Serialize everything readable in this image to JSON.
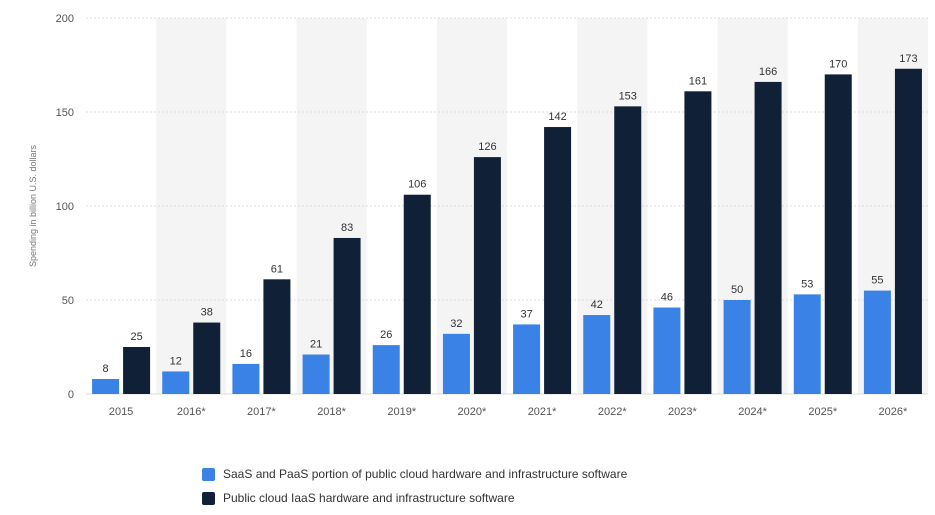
{
  "chart_data": {
    "type": "bar",
    "categories": [
      "2015",
      "2016*",
      "2017*",
      "2018*",
      "2019*",
      "2020*",
      "2021*",
      "2022*",
      "2023*",
      "2024*",
      "2025*",
      "2026*"
    ],
    "series": [
      {
        "name": "SaaS and PaaS portion of public cloud hardware and infrastructure software",
        "color": "#3b82e6",
        "values": [
          8,
          12,
          16,
          21,
          26,
          32,
          37,
          42,
          46,
          50,
          53,
          55
        ]
      },
      {
        "name": "Public cloud IaaS hardware and infrastructure software",
        "color": "#0f2037",
        "values": [
          25,
          38,
          61,
          83,
          106,
          126,
          142,
          153,
          161,
          166,
          170,
          173
        ]
      }
    ],
    "ylabel": "Spending in billion U.S. dollars",
    "ylim": [
      0,
      200
    ],
    "yticks": [
      0,
      50,
      100,
      150,
      200
    ],
    "grid": true,
    "data_labels": true,
    "legend_position": "bottom"
  }
}
